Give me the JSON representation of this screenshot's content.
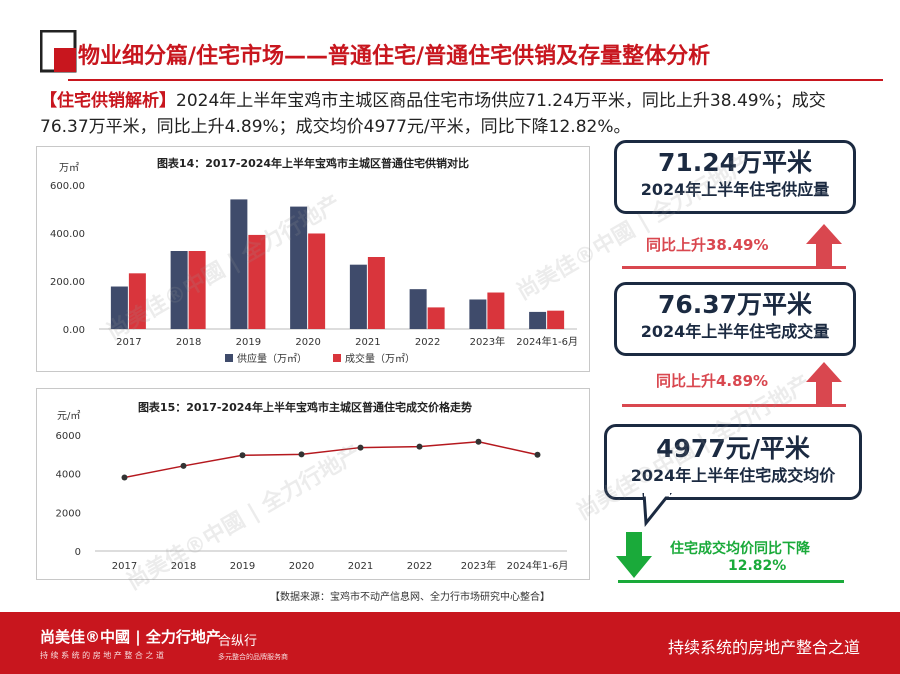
{
  "header": {
    "title": "物业细分篇/住宅市场——普通住宅/普通住宅供销及存量整体分析"
  },
  "summary": {
    "tag": "【住宅供销解析】",
    "text": "2024年上半年宝鸡市主城区商品住宅市场供应71.24万平米，同比上升38.49%；成交76.37万平米，同比上升4.89%；成交均价4977元/平米，同比下降12.82%。"
  },
  "chart_data": [
    {
      "type": "bar",
      "title": "图表14：2017-2024年上半年宝鸡市主城区普通住宅供销对比",
      "unit_label": "万㎡",
      "categories": [
        "2017",
        "2018",
        "2019",
        "2020",
        "2021",
        "2022",
        "2023年",
        "2024年1-6月"
      ],
      "series": [
        {
          "name": "供应量（万㎡）",
          "color": "#3f4b6b",
          "values": [
            177,
            325,
            540,
            510,
            268,
            166,
            123,
            71.24
          ]
        },
        {
          "name": "成交量（万㎡）",
          "color": "#d9353c",
          "values": [
            232,
            325,
            392,
            398,
            300,
            90,
            152,
            76.37
          ]
        }
      ],
      "ylim": [
        0,
        600
      ],
      "yticks": [
        "600.00",
        "400.00",
        "200.00",
        "0.00"
      ],
      "ytick_values": [
        600,
        400,
        200,
        0
      ],
      "legend": "bottom"
    },
    {
      "type": "line",
      "title": "图表15：2017-2024年上半年宝鸡市主城区普通住宅成交价格走势",
      "unit_label": "元/㎡",
      "categories": [
        "2017",
        "2018",
        "2019",
        "2020",
        "2021",
        "2022",
        "2023年",
        "2024年1-6月"
      ],
      "series": [
        {
          "name": "成交均价",
          "color": "#b5181e",
          "values": [
            3800,
            4400,
            4950,
            5000,
            5350,
            5400,
            5650,
            4977
          ]
        }
      ],
      "ylim": [
        0,
        6000
      ],
      "yticks": [
        "6000",
        "4000",
        "2000",
        "0"
      ],
      "ytick_values": [
        6000,
        4000,
        2000,
        0
      ]
    }
  ],
  "kpis": [
    {
      "value": "71.24万平米",
      "label": "2024年上半年住宅供应量",
      "change": "同比上升38.49%",
      "direction": "up"
    },
    {
      "value": "76.37万平米",
      "label": "2024年上半年住宅成交量",
      "change": "同比上升4.89%",
      "direction": "up"
    },
    {
      "value": "4977元/平米",
      "label": "2024年上半年住宅成交均价",
      "change": "住宅成交均价同比下降",
      "change2": "12.82%",
      "direction": "down"
    }
  ],
  "colors": {
    "accent": "#c8161e",
    "navy": "#1b2a41",
    "up": "#d9474f",
    "down": "#1aaa3a"
  },
  "source": "【数据来源：宝鸡市不动产信息网、全力行市场研究中心整合】",
  "footer": {
    "brand": "尚美佳®中國 | 全力行地产",
    "brand_sub": "持 续 系 统 的 房 地 产 整 合 之 道",
    "brand2": "合纵行",
    "brand2_sub": "多元整合的品牌服务商",
    "slogan": "持续系统的房地产整合之道"
  }
}
